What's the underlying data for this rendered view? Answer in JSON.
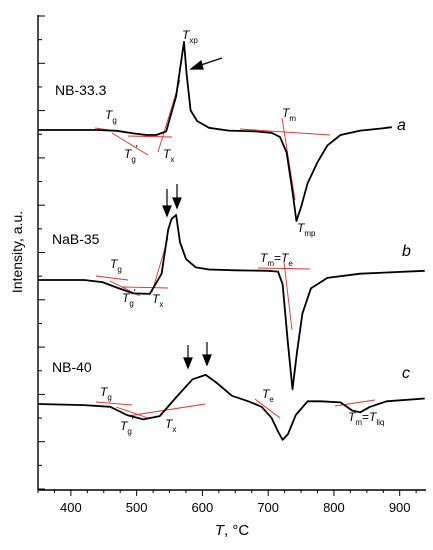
{
  "chart_data": {
    "type": "line",
    "title": "",
    "xlabel": {
      "main": "T",
      "unit": ", °C"
    },
    "ylabel": "Intensity, a.u.",
    "xlim": [
      350,
      940
    ],
    "x_ticks": [
      "400",
      "500",
      "600",
      "700",
      "800",
      "900"
    ],
    "y_ticks_labeled": false,
    "grid": false,
    "series": [
      {
        "name": "NB-33.3",
        "panel_letter": "a",
        "points": [
          [
            350,
            0.0
          ],
          [
            400,
            0.0
          ],
          [
            440,
            0.0
          ],
          [
            470,
            -0.03
          ],
          [
            495,
            -0.12
          ],
          [
            515,
            -0.18
          ],
          [
            530,
            -0.18
          ],
          [
            545,
            -0.05
          ],
          [
            560,
            1.2
          ],
          [
            572,
            3.15
          ],
          [
            576,
            2.0
          ],
          [
            582,
            0.7
          ],
          [
            592,
            0.32
          ],
          [
            610,
            0.08
          ],
          [
            640,
            -0.02
          ],
          [
            680,
            -0.05
          ],
          [
            705,
            -0.1
          ],
          [
            718,
            -0.25
          ],
          [
            728,
            -0.8
          ],
          [
            737,
            -2.2
          ],
          [
            743,
            -3.25
          ],
          [
            750,
            -2.75
          ],
          [
            760,
            -1.9
          ],
          [
            775,
            -1.15
          ],
          [
            790,
            -0.55
          ],
          [
            810,
            -0.18
          ],
          [
            840,
            -0.02
          ],
          [
            870,
            0.05
          ],
          [
            888,
            0.1
          ]
        ]
      },
      {
        "name": "NaB-35",
        "panel_letter": "b",
        "points": [
          [
            350,
            0.0
          ],
          [
            420,
            0.0
          ],
          [
            448,
            -0.05
          ],
          [
            470,
            -0.18
          ],
          [
            495,
            -0.32
          ],
          [
            520,
            -0.33
          ],
          [
            538,
            0.15
          ],
          [
            548,
            1.2
          ],
          [
            553,
            1.45
          ],
          [
            560,
            1.55
          ],
          [
            566,
            0.9
          ],
          [
            575,
            0.5
          ],
          [
            590,
            0.3
          ],
          [
            610,
            0.25
          ],
          [
            650,
            0.23
          ],
          [
            700,
            0.22
          ],
          [
            715,
            0.2
          ],
          [
            722,
            -0.1
          ],
          [
            730,
            -1.5
          ],
          [
            737,
            -2.6
          ],
          [
            744,
            -1.7
          ],
          [
            752,
            -0.8
          ],
          [
            765,
            -0.2
          ],
          [
            790,
            0.05
          ],
          [
            840,
            0.15
          ],
          [
            938,
            0.22
          ]
        ]
      },
      {
        "name": "NB-40",
        "panel_letter": "c",
        "points": [
          [
            350,
            0.0
          ],
          [
            420,
            -0.02
          ],
          [
            460,
            -0.05
          ],
          [
            485,
            -0.2
          ],
          [
            510,
            -0.28
          ],
          [
            535,
            -0.22
          ],
          [
            560,
            0.12
          ],
          [
            585,
            0.45
          ],
          [
            605,
            0.53
          ],
          [
            620,
            0.4
          ],
          [
            645,
            0.15
          ],
          [
            670,
            0.05
          ],
          [
            690,
            -0.05
          ],
          [
            705,
            -0.25
          ],
          [
            715,
            -0.5
          ],
          [
            722,
            -0.65
          ],
          [
            730,
            -0.55
          ],
          [
            742,
            -0.2
          ],
          [
            760,
            0.05
          ],
          [
            780,
            0.05
          ],
          [
            810,
            0.03
          ],
          [
            828,
            -0.12
          ],
          [
            840,
            -0.15
          ],
          [
            855,
            -0.05
          ],
          [
            880,
            0.05
          ],
          [
            938,
            0.1
          ]
        ]
      }
    ],
    "annotations": [
      {
        "id": "a-tg",
        "main": "T",
        "sub": "g"
      },
      {
        "id": "a-tg2",
        "main": "T",
        "sub": "g",
        "prime": "'"
      },
      {
        "id": "a-tx",
        "main": "T",
        "sub": "x"
      },
      {
        "id": "a-txp",
        "main": "T",
        "sub": "xp"
      },
      {
        "id": "a-tm",
        "main": "T",
        "sub": "m"
      },
      {
        "id": "a-tmp",
        "main": "T",
        "sub": "mp"
      },
      {
        "id": "b-tg",
        "main": "T",
        "sub": "g"
      },
      {
        "id": "b-tg2",
        "main": "T",
        "sub": "g",
        "prime": "'"
      },
      {
        "id": "b-tx",
        "main": "T",
        "sub": "x"
      },
      {
        "id": "b-tmte",
        "main": "T",
        "sub": "m",
        "eq": "=",
        "main2": "T",
        "sub2": "e"
      },
      {
        "id": "c-tg",
        "main": "T",
        "sub": "g"
      },
      {
        "id": "c-tg2",
        "main": "T",
        "sub": "g",
        "prime": "'"
      },
      {
        "id": "c-tx",
        "main": "T",
        "sub": "x"
      },
      {
        "id": "c-te",
        "main": "T",
        "sub": "e"
      },
      {
        "id": "c-tmliq",
        "main": "T",
        "sub": "m",
        "eq": "=",
        "main2": "T",
        "sub2": "liq"
      }
    ],
    "colors": {
      "curve": "#000000",
      "tangent": "#e03030"
    }
  }
}
